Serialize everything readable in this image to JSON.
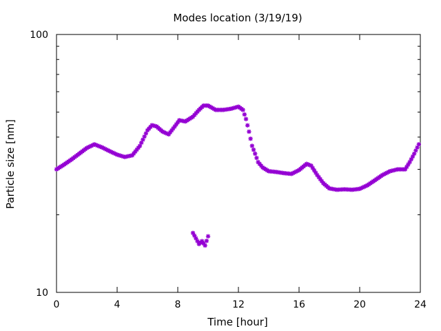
{
  "chart_data": {
    "type": "scatter",
    "title": "Modes location (3/19/19)",
    "xlabel": "Time [hour]",
    "ylabel": "Particle size [nm]",
    "xlim": [
      0,
      24
    ],
    "ylim": [
      10,
      100
    ],
    "yscale": "log",
    "x_ticks": [
      0,
      4,
      8,
      12,
      16,
      20,
      24
    ],
    "x_tick_labels": [
      "0",
      "4",
      "8",
      "12",
      "16",
      "20",
      "24"
    ],
    "y_tick_labels": [
      "10",
      "100"
    ],
    "grid": false,
    "legend": false,
    "marker": "*",
    "color": "#9400d3",
    "series": [
      {
        "x": [
          0.0,
          0.5,
          1.0,
          1.5,
          2.0,
          2.5,
          3.0,
          3.5,
          4.0,
          4.5,
          5.0,
          5.5,
          6.0,
          6.3,
          6.6,
          7.0,
          7.4,
          7.8,
          8.1,
          8.5,
          9.0,
          9.4,
          9.7,
          10.0,
          10.5,
          11.0,
          11.5,
          12.0,
          12.3,
          12.5,
          12.7,
          12.9,
          13.1,
          13.3,
          13.6,
          14.0,
          14.5,
          15.0,
          15.5,
          16.0,
          16.5,
          16.8,
          17.2,
          17.6,
          18.0,
          18.5,
          19.0,
          19.5,
          20.0,
          20.5,
          21.0,
          21.5,
          22.0,
          22.5,
          23.0,
          23.3,
          23.6,
          23.9
        ],
        "y": [
          30.0,
          31.3,
          32.8,
          34.5,
          36.3,
          37.5,
          36.5,
          35.3,
          34.2,
          33.5,
          34.0,
          37.0,
          42.5,
          44.5,
          44.0,
          42.0,
          41.0,
          44.0,
          46.5,
          46.0,
          48.0,
          51.0,
          53.0,
          53.0,
          51.0,
          51.0,
          51.5,
          52.5,
          51.0,
          47.0,
          42.0,
          37.0,
          34.5,
          32.0,
          30.5,
          29.5,
          29.3,
          29.0,
          28.8,
          29.8,
          31.5,
          31.0,
          28.5,
          26.5,
          25.3,
          25.0,
          25.1,
          25.0,
          25.2,
          26.0,
          27.2,
          28.5,
          29.5,
          30.0,
          30.0,
          32.0,
          34.5,
          37.5
        ]
      },
      {
        "x": [
          9.0,
          9.2,
          9.4,
          9.6,
          9.8,
          10.0
        ],
        "y": [
          17.0,
          16.2,
          15.4,
          15.8,
          15.2,
          16.5
        ]
      }
    ]
  }
}
